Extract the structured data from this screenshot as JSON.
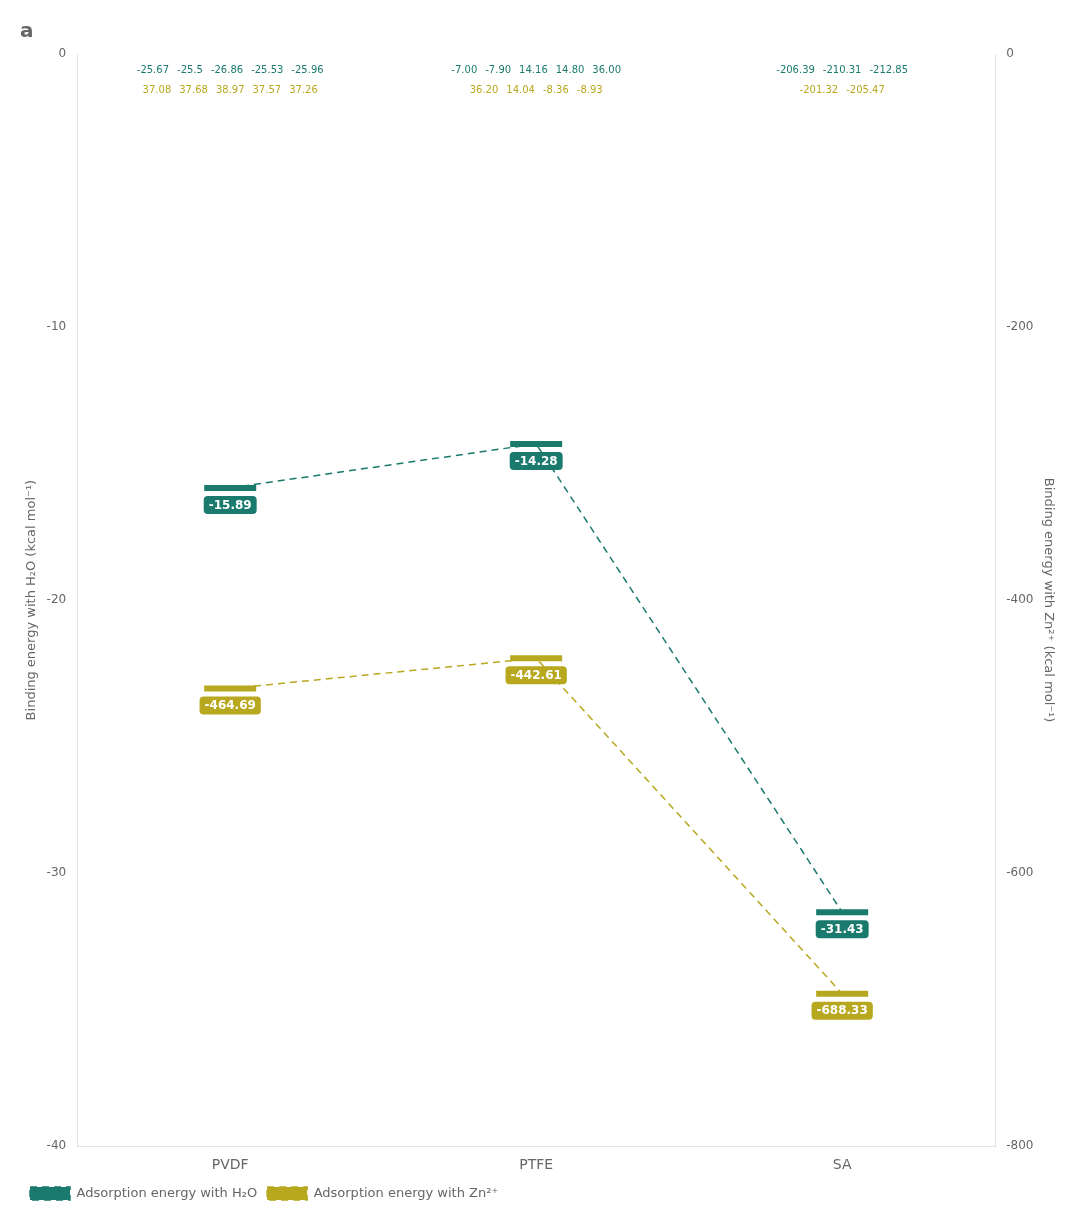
{
  "chart_data": {
    "type": "line",
    "title": "a",
    "categories": [
      "PVDF",
      "PTFE",
      "SA"
    ],
    "series": [
      {
        "name": "Adsorption energy with H₂O",
        "color": "#1a7a6e",
        "values": [
          -15.89,
          -14.28,
          -31.43
        ]
      },
      {
        "name": "Adsorption energy with Zn²⁺",
        "color": "#b8a820",
        "values": [
          -464.69,
          -442.61,
          -688.33
        ],
        "axis": "y2"
      }
    ],
    "y_label": "Binding energy with H₂O (kcal mol⁻¹)",
    "y2_label": "Binding energy with Zn²⁺ (kcal mol⁻¹)",
    "ylim": [
      -40,
      0
    ],
    "yticks": [
      -40,
      -30,
      -20,
      -10,
      0
    ],
    "y2lim": [
      -800,
      0
    ],
    "y2ticks": [
      -800,
      -600,
      -400,
      -200,
      0
    ],
    "grid": false,
    "legend": "lower left",
    "data_labels": true,
    "marker": "line",
    "line_style": "dashed",
    "annotations": [
      {
        "category": "PVDF",
        "series": "Adsorption energy with H₂O",
        "texts": [
          "-25.67",
          "-25.5",
          "-26.86",
          "-25.53",
          "-25.96"
        ]
      },
      {
        "category": "PVDF",
        "series": "Adsorption energy with Zn²⁺",
        "texts": [
          "37.08",
          "37.68",
          "38.97",
          "37.57",
          "37.26"
        ]
      },
      {
        "category": "PTFE",
        "series": "Adsorption energy with H₂O",
        "texts": [
          "-7.00",
          "-7.90",
          "14.16",
          "14.80",
          "36.00"
        ]
      },
      {
        "category": "PTFE",
        "series": "Adsorption energy with Zn²⁺",
        "texts": [
          "36.20",
          "14.04",
          "-8.36",
          "-8.93"
        ]
      },
      {
        "category": "SA",
        "series": "Adsorption energy with H₂O",
        "texts": [
          "-206.39",
          "-210.31",
          "-212.85"
        ]
      },
      {
        "category": "SA",
        "series": "Adsorption energy with Zn²⁺",
        "texts": [
          "-201.32",
          "-205.47"
        ]
      }
    ]
  }
}
